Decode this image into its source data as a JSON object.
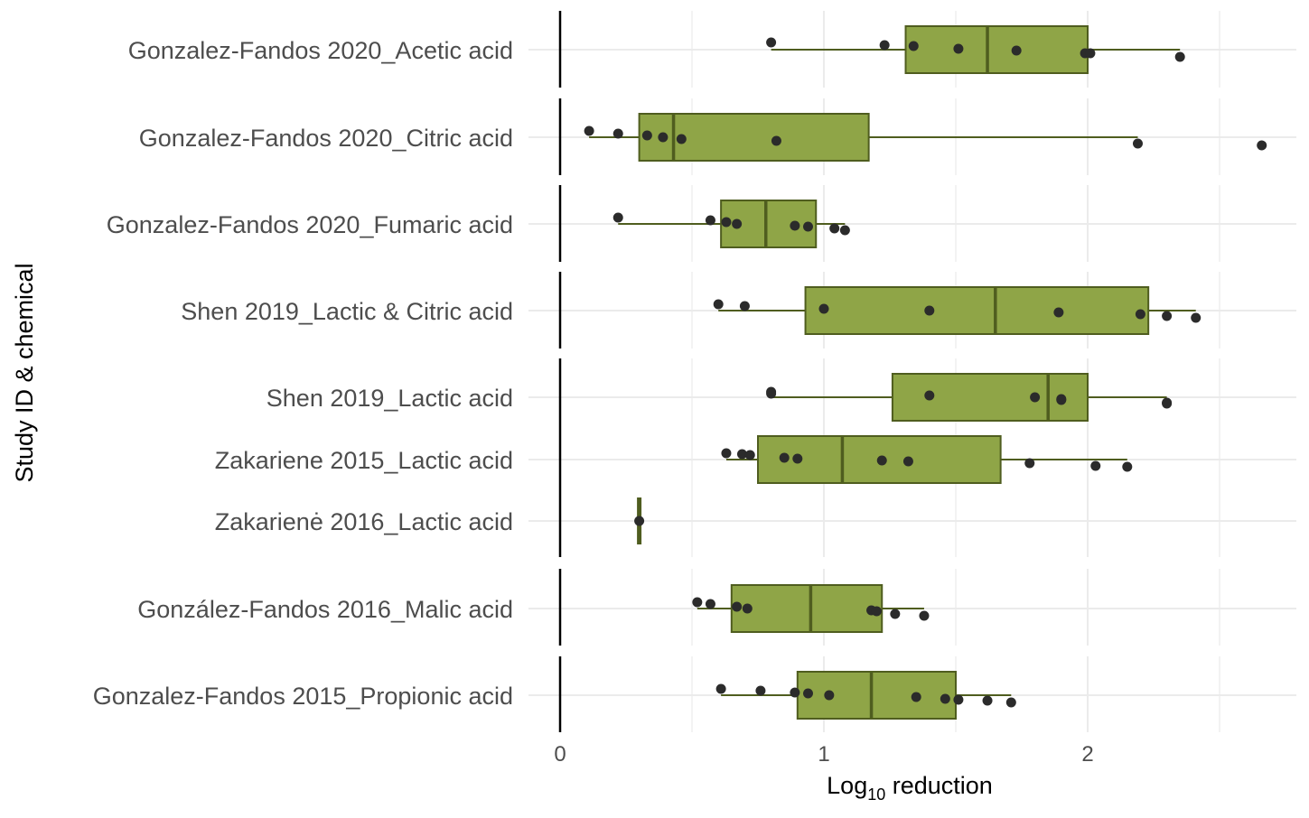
{
  "chart_data": {
    "type": "boxplot",
    "xlabel": {
      "base": "Log",
      "sub": "10",
      "rest": " reduction"
    },
    "ylabel": "Study ID & chemical",
    "xlim": [
      -0.05,
      2.8
    ],
    "xticks": [
      0,
      1,
      2
    ],
    "xtick_labels": [
      "0",
      "1",
      "2"
    ],
    "grid": true,
    "colors": {
      "box_fill": "#8fa547",
      "box_stroke": "#4f5d1f",
      "point": "#2b2b2b",
      "reference_line": "#000000",
      "grid": "#ebebeb"
    },
    "categories": [
      "Gonzalez-Fandos 2020_Acetic acid",
      "Gonzalez-Fandos 2020_Citric acid",
      "Gonzalez-Fandos 2020_Fumaric acid",
      "Shen 2019_Lactic & Citric acid",
      "Shen 2019_Lactic acid",
      "Zakariene 2015_Lactic acid",
      "Zakarienė 2016_Lactic acid",
      "González-Fandos 2016_Malic acid",
      "Gonzalez-Fandos 2015_Propionic acid"
    ],
    "groups": [
      [
        0
      ],
      [
        1
      ],
      [
        2
      ],
      [
        3
      ],
      [
        4,
        5,
        6
      ],
      [
        7
      ],
      [
        8
      ]
    ],
    "boxes": [
      {
        "whisker_low": 0.8,
        "q1": 1.31,
        "median": 1.62,
        "q3": 2.0,
        "whisker_high": 2.35,
        "points": [
          [
            0.8,
            -0.08
          ],
          [
            1.23,
            -0.05
          ],
          [
            1.34,
            -0.04
          ],
          [
            1.51,
            -0.01
          ],
          [
            1.73,
            0.01
          ],
          [
            1.99,
            0.04
          ],
          [
            2.01,
            0.04
          ],
          [
            2.35,
            0.08
          ]
        ]
      },
      {
        "whisker_low": 0.11,
        "q1": 0.3,
        "median": 0.43,
        "q3": 1.17,
        "whisker_high": 2.19,
        "points": [
          [
            0.11,
            -0.07
          ],
          [
            0.22,
            -0.04
          ],
          [
            0.33,
            -0.02
          ],
          [
            0.39,
            0.0
          ],
          [
            0.46,
            0.02
          ],
          [
            0.82,
            0.04
          ],
          [
            2.19,
            0.07
          ],
          [
            2.66,
            0.09
          ]
        ]
      },
      {
        "whisker_low": 0.22,
        "q1": 0.61,
        "median": 0.78,
        "q3": 0.97,
        "whisker_high": 1.08,
        "points": [
          [
            0.22,
            -0.07
          ],
          [
            0.57,
            -0.04
          ],
          [
            0.63,
            -0.02
          ],
          [
            0.67,
            0.0
          ],
          [
            0.89,
            0.02
          ],
          [
            0.94,
            0.03
          ],
          [
            1.04,
            0.05
          ],
          [
            1.08,
            0.07
          ]
        ]
      },
      {
        "whisker_low": 0.6,
        "q1": 0.93,
        "median": 1.65,
        "q3": 2.23,
        "whisker_high": 2.41,
        "points": [
          [
            0.6,
            -0.07
          ],
          [
            0.7,
            -0.05
          ],
          [
            1.0,
            -0.02
          ],
          [
            1.4,
            0.0
          ],
          [
            1.89,
            0.02
          ],
          [
            2.2,
            0.04
          ],
          [
            2.3,
            0.06
          ],
          [
            2.41,
            0.08
          ]
        ]
      },
      {
        "whisker_low": 0.8,
        "q1": 1.26,
        "median": 1.85,
        "q3": 2.0,
        "whisker_high": 2.3,
        "points": [
          [
            0.8,
            -0.06
          ],
          [
            0.8,
            -0.04
          ],
          [
            1.4,
            -0.02
          ],
          [
            1.8,
            0.0
          ],
          [
            1.9,
            0.02
          ],
          [
            1.9,
            0.03
          ],
          [
            2.3,
            0.06
          ],
          [
            2.3,
            0.07
          ]
        ]
      },
      {
        "whisker_low": 0.63,
        "q1": 0.75,
        "median": 1.07,
        "q3": 1.67,
        "whisker_high": 2.15,
        "points": [
          [
            0.63,
            -0.07
          ],
          [
            0.69,
            -0.06
          ],
          [
            0.72,
            -0.05
          ],
          [
            0.85,
            -0.02
          ],
          [
            0.9,
            -0.01
          ],
          [
            1.22,
            0.01
          ],
          [
            1.32,
            0.02
          ],
          [
            1.78,
            0.04
          ],
          [
            2.03,
            0.07
          ],
          [
            2.15,
            0.08
          ]
        ]
      },
      {
        "whisker_low": 0.3,
        "q1": 0.3,
        "median": 0.3,
        "q3": 0.3,
        "whisker_high": 0.3,
        "points": [
          [
            0.3,
            0.0
          ]
        ]
      },
      {
        "whisker_low": 0.52,
        "q1": 0.65,
        "median": 0.95,
        "q3": 1.22,
        "whisker_high": 1.38,
        "points": [
          [
            0.52,
            -0.07
          ],
          [
            0.57,
            -0.05
          ],
          [
            0.67,
            -0.02
          ],
          [
            0.71,
            0.0
          ],
          [
            1.18,
            0.02
          ],
          [
            1.2,
            0.03
          ],
          [
            1.27,
            0.06
          ],
          [
            1.38,
            0.08
          ]
        ]
      },
      {
        "whisker_low": 0.61,
        "q1": 0.9,
        "median": 1.18,
        "q3": 1.5,
        "whisker_high": 1.71,
        "points": [
          [
            0.61,
            -0.07
          ],
          [
            0.76,
            -0.05
          ],
          [
            0.89,
            -0.03
          ],
          [
            0.94,
            -0.02
          ],
          [
            1.02,
            0.0
          ],
          [
            1.35,
            0.02
          ],
          [
            1.46,
            0.04
          ],
          [
            1.51,
            0.05
          ],
          [
            1.62,
            0.06
          ],
          [
            1.71,
            0.08
          ]
        ]
      }
    ]
  }
}
